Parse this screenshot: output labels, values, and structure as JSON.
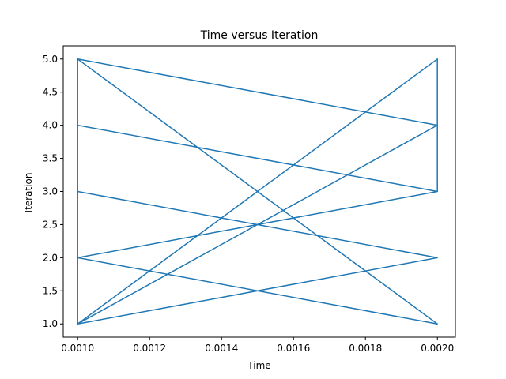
{
  "chart_data": {
    "type": "line",
    "title": "Time versus Iteration",
    "xlabel": "Time",
    "ylabel": "Iteration",
    "xlim": [
      0.00096,
      0.00205
    ],
    "ylim": [
      0.8,
      5.2
    ],
    "xticks": [
      0.001,
      0.0012,
      0.0014,
      0.0016,
      0.0018,
      0.002
    ],
    "xtick_labels": [
      "0.0010",
      "0.0012",
      "0.0014",
      "0.0016",
      "0.0018",
      "0.0020"
    ],
    "yticks": [
      1.0,
      1.5,
      2.0,
      2.5,
      3.0,
      3.5,
      4.0,
      4.5,
      5.0
    ],
    "ytick_labels": [
      "1.0",
      "1.5",
      "2.0",
      "2.5",
      "3.0",
      "3.5",
      "4.0",
      "4.5",
      "5.0"
    ],
    "grid": false,
    "line_color": "#1f77b4",
    "series": [
      {
        "x": [
          0.001,
          0.001,
          0.002,
          0.002,
          0.001,
          0.002,
          0.001,
          0.001,
          0.002,
          0.001,
          0.002,
          0.002,
          0.001,
          0.002,
          0.001,
          0.001,
          0.002,
          0.001
        ],
        "y": [
          1.0,
          2.0,
          3.0,
          4.0,
          5.0,
          1.0,
          2.0,
          3.0,
          2.0,
          1.0,
          5.0,
          3.0,
          4.0,
          3.0,
          2.0,
          5.0,
          4.0,
          1.0
        ]
      }
    ]
  }
}
